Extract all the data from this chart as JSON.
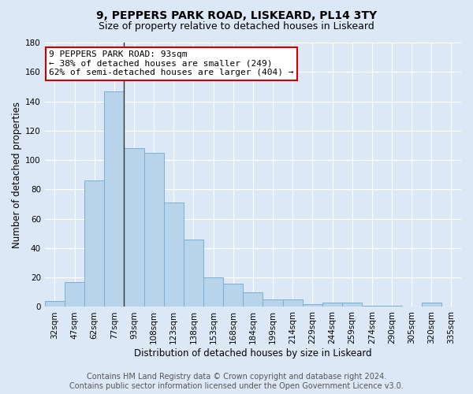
{
  "title1": "9, PEPPERS PARK ROAD, LISKEARD, PL14 3TY",
  "title2": "Size of property relative to detached houses in Liskeard",
  "xlabel": "Distribution of detached houses by size in Liskeard",
  "ylabel": "Number of detached properties",
  "categories": [
    "32sqm",
    "47sqm",
    "62sqm",
    "77sqm",
    "93sqm",
    "108sqm",
    "123sqm",
    "138sqm",
    "153sqm",
    "168sqm",
    "184sqm",
    "199sqm",
    "214sqm",
    "229sqm",
    "244sqm",
    "259sqm",
    "274sqm",
    "290sqm",
    "305sqm",
    "320sqm",
    "335sqm"
  ],
  "values": [
    4,
    17,
    86,
    147,
    108,
    105,
    71,
    46,
    20,
    16,
    10,
    5,
    5,
    2,
    3,
    3,
    1,
    1,
    0,
    3,
    0
  ],
  "bar_color": "#b8d4ea",
  "bar_edge_color": "#7aafd4",
  "highlight_bar_index": 4,
  "highlight_line_color": "#333333",
  "ylim": [
    0,
    180
  ],
  "yticks": [
    0,
    20,
    40,
    60,
    80,
    100,
    120,
    140,
    160,
    180
  ],
  "annotation_text": "9 PEPPERS PARK ROAD: 93sqm\n← 38% of detached houses are smaller (249)\n62% of semi-detached houses are larger (404) →",
  "annotation_box_color": "#ffffff",
  "annotation_box_edge": "#cc0000",
  "footer_text": "Contains HM Land Registry data © Crown copyright and database right 2024.\nContains public sector information licensed under the Open Government Licence v3.0.",
  "bg_color": "#dce8f5",
  "plot_bg_color": "#dce8f5",
  "grid_color": "#ffffff",
  "title1_fontsize": 10,
  "title2_fontsize": 9,
  "xlabel_fontsize": 8.5,
  "ylabel_fontsize": 8.5,
  "tick_fontsize": 7.5,
  "footer_fontsize": 7,
  "ann_fontsize": 8
}
